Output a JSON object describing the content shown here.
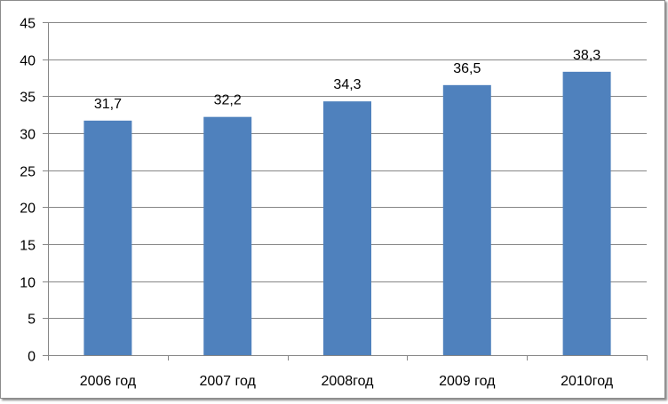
{
  "chart_data": {
    "type": "bar",
    "categories": [
      "2006 год",
      "2007 год",
      "2008год",
      "2009 год",
      "2010год"
    ],
    "values": [
      31.7,
      32.2,
      34.3,
      36.5,
      38.3
    ],
    "value_labels": [
      "31,7",
      "32,2",
      "34,3",
      "36,5",
      "38,3"
    ],
    "title": "",
    "xlabel": "",
    "ylabel": "",
    "ylim": [
      0,
      45
    ],
    "y_ticks": [
      0,
      5,
      10,
      15,
      20,
      25,
      30,
      35,
      40,
      45
    ],
    "y_tick_labels": [
      "0",
      "5",
      "10",
      "15",
      "20",
      "25",
      "30",
      "35",
      "40",
      "45"
    ],
    "grid": true,
    "legend": "none",
    "colors": {
      "bar": "#4f81bd",
      "grid": "#868686",
      "axis": "#868686"
    }
  }
}
